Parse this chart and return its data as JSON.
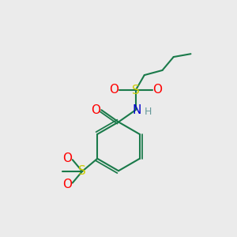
{
  "bg_color": "#ebebeb",
  "C": "#1a7a4a",
  "S": "#cccc00",
  "O": "#ff0000",
  "N": "#0000cc",
  "H": "#669999",
  "bond_color": "#1a7a4a",
  "figsize": [
    3.0,
    3.0
  ],
  "dpi": 100,
  "xlim": [
    0,
    10
  ],
  "ylim": [
    0,
    10
  ]
}
